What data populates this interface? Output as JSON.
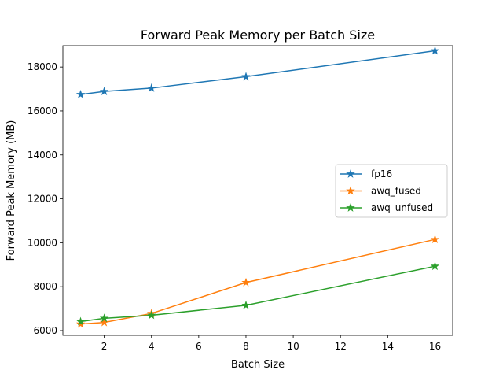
{
  "chart_data": {
    "type": "line",
    "title": "Forward Peak Memory per Batch Size",
    "xlabel": "Batch Size",
    "ylabel": "Forward Peak Memory (MB)",
    "x": [
      1,
      2,
      4,
      8,
      16
    ],
    "xlim": [
      0.25,
      16.75
    ],
    "ylim": [
      5784,
      18973
    ],
    "xticks": [
      2,
      4,
      6,
      8,
      10,
      12,
      14,
      16
    ],
    "yticks": [
      6000,
      8000,
      10000,
      12000,
      14000,
      16000,
      18000
    ],
    "grid": false,
    "legend": "center-right",
    "marker": "star",
    "series": [
      {
        "name": "fp16",
        "color": "#1f77b4",
        "values": [
          16750,
          16890,
          17040,
          17560,
          18740
        ]
      },
      {
        "name": "awq_fused",
        "color": "#ff7f0e",
        "values": [
          6300,
          6370,
          6780,
          8190,
          10150
        ]
      },
      {
        "name": "awq_unfused",
        "color": "#2ca02c",
        "values": [
          6410,
          6560,
          6700,
          7150,
          8930
        ]
      }
    ]
  }
}
